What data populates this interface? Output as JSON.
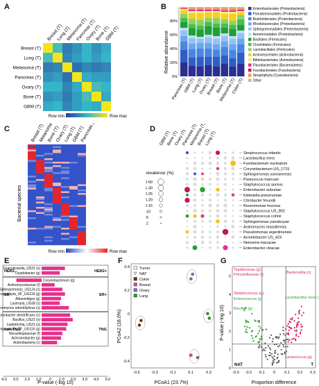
{
  "panel_labels": [
    "A",
    "B",
    "C",
    "D",
    "E",
    "F",
    "G"
  ],
  "colors": {
    "heat_low": "#2a3f9e",
    "heat_mid": "#35b6c8",
    "heat_high": "#f3e41c",
    "red": "#e3262c",
    "blue": "#3553c9",
    "pink": "#e8318d",
    "green": "#2ca02c"
  },
  "panel_a": {
    "col_labels": [
      "Breast (T)",
      "Lung (T)",
      "Melanoma (T)",
      "Pancreas (T)",
      "Ovary (T)",
      "Bone (T)",
      "GBM (T)"
    ],
    "row_labels": [
      "Breast (T)",
      "Lung (T)",
      "Melanoma (T)",
      "Pancreas (T)",
      "Ovary (T)",
      "Bone (T)",
      "GBM (T)"
    ],
    "legend_min": "Row min",
    "legend_max": "Row max",
    "matrix": [
      [
        1.0,
        0.55,
        0.25,
        0.35,
        0.5,
        0.35,
        0.45
      ],
      [
        0.55,
        1.0,
        0.3,
        0.4,
        0.5,
        0.4,
        0.5
      ],
      [
        0.25,
        0.3,
        1.0,
        0.2,
        0.3,
        0.25,
        0.3
      ],
      [
        0.35,
        0.4,
        0.2,
        1.0,
        0.45,
        0.4,
        0.4
      ],
      [
        0.5,
        0.5,
        0.3,
        0.45,
        1.0,
        0.55,
        0.5
      ],
      [
        0.35,
        0.4,
        0.25,
        0.4,
        0.55,
        1.0,
        0.45
      ],
      [
        0.45,
        0.5,
        0.3,
        0.4,
        0.5,
        0.45,
        1.0
      ]
    ]
  },
  "panel_b": {
    "ylabel": "Relative abundance",
    "ticks": [
      "0%",
      "20%",
      "40%",
      "60%",
      "80%"
    ],
    "categories": [
      "Pancreas (T)",
      "GBM (T)",
      "Lung (T)",
      "Ovary (T)",
      "Breast (T)",
      "Bone (T)",
      "Melanoma (T)",
      "Colon (T)"
    ],
    "legend": [
      {
        "name": "Enterobacterales (Proteobacteria)",
        "color": "#2b2f8f"
      },
      {
        "name": "Pseudomonadales (Proteobacteria)",
        "color": "#2f5fc4"
      },
      {
        "name": "Burkholderiales (Proteobacteria)",
        "color": "#4a86e0"
      },
      {
        "name": "Rhodobacterales (Proteobacteria)",
        "color": "#6ba6ee"
      },
      {
        "name": "Sphingomonadales (Proteobacteria)",
        "color": "#93c3f4"
      },
      {
        "name": "Aeromonadales (Proteobacteria)",
        "color": "#bcdcf7"
      },
      {
        "name": "Bacillales (Firmicutes)",
        "color": "#1f9e3a"
      },
      {
        "name": "Clostridiales (Firmicutes)",
        "color": "#46c04a"
      },
      {
        "name": "Lactobacillales (Firmicutes)",
        "color": "#8fd16a"
      },
      {
        "name": "Actinomycetales (Actinobacteria)",
        "color": "#f2d21b"
      },
      {
        "name": "Bifidobacteriales (Actinobacteria)",
        "color": "#f7ea7a"
      },
      {
        "name": "Flavobacteriales (Bacteroidetes)",
        "color": "#e8318d"
      },
      {
        "name": "Fusobacteriales (Fusobacteria)",
        "color": "#c2185b"
      },
      {
        "name": "Streptophyta (Cyanobacteria)",
        "color": "#f39a3c"
      },
      {
        "name": "Other",
        "color": "#b8b8b8"
      }
    ],
    "stacks": [
      [
        20,
        18,
        12,
        8,
        8,
        4,
        8,
        6,
        6,
        5,
        2,
        1,
        0,
        1,
        1
      ],
      [
        15,
        12,
        12,
        8,
        8,
        4,
        10,
        6,
        8,
        8,
        3,
        2,
        0,
        2,
        2
      ],
      [
        14,
        14,
        12,
        8,
        6,
        3,
        10,
        6,
        8,
        10,
        3,
        2,
        0,
        2,
        2
      ],
      [
        16,
        12,
        12,
        8,
        8,
        4,
        12,
        6,
        6,
        8,
        2,
        2,
        0,
        2,
        2
      ],
      [
        14,
        14,
        10,
        8,
        8,
        4,
        12,
        6,
        8,
        8,
        2,
        2,
        0,
        2,
        2
      ],
      [
        18,
        12,
        12,
        8,
        8,
        4,
        8,
        6,
        6,
        8,
        3,
        2,
        0,
        3,
        2
      ],
      [
        14,
        12,
        12,
        8,
        8,
        4,
        10,
        6,
        6,
        10,
        3,
        2,
        0,
        3,
        2
      ],
      [
        18,
        16,
        12,
        8,
        8,
        4,
        8,
        8,
        6,
        4,
        2,
        2,
        0,
        2,
        2
      ]
    ]
  },
  "panel_c": {
    "col_labels": [
      "Breast (T)",
      "Melanoma (T)",
      "Bone (T)",
      "Ovary (T)",
      "Lung (T)",
      "GBM (T)",
      "Pancreas (T)"
    ],
    "ylabel": "Bacterial species",
    "legend_min": "Row min",
    "legend_max": "Row max"
  },
  "panel_d": {
    "col_labels": [
      "GBM (T)",
      "Bone (T)",
      "Ovary (T)",
      "Pancreas (T)",
      "Melanoma (T)",
      "Breast (T)",
      "Lung (T)"
    ],
    "species": [
      "Streptococcus infantis",
      "Lactobacillus iners",
      "Fusobacterium nucleatum",
      "Corynebacterium US_1715",
      "Sphingomonas yunnanensis",
      "Paracoccus marcusii",
      "Staphylococcus aureus",
      "Enterobacter asburiae",
      "Klebsiella pneumoniae",
      "Citrobacter freundii",
      "Roseomonas mucosa",
      "Staphylococcus US_802",
      "Staphylococcus cohnii",
      "Sphingomonas yanoikuyae",
      "Actinomyces massiliensis",
      "Pseudomonas argentinensis",
      "Acinetobacter US_424",
      "Neisseria macacae",
      "Enterobacter cloacae"
    ],
    "prevalence_title": "Prevalence (%)",
    "prevalence_levels": [
      "30-50",
      "25-30",
      "20-25",
      "15-20",
      "10-15",
      "5-10",
      "2-5",
      "0-2"
    ]
  },
  "panel_e": {
    "xlabel": "P-value (-log 10)",
    "ticks": [
      "4.0",
      "3.0",
      "2.0",
      "1.0",
      "0",
      "1.0",
      "2.0",
      "3.0",
      "4.0",
      "5.0"
    ],
    "groups": [
      {
        "left": "HER2-",
        "right": "HER2+"
      },
      {
        "left": "ER-",
        "right": "ER+"
      },
      {
        "left": "non-TNG",
        "right": "TNG"
      }
    ],
    "bars": [
      {
        "label": "Granulicatella_US31 (s)",
        "side": "right",
        "value": 3.6
      },
      {
        "label": "Dyadobacter (g)",
        "side": "right",
        "value": 2.8
      },
      {
        "label": "Corynebacterium (g)",
        "side": "left",
        "value": 3.9
      },
      {
        "label": "Actinomycetaceae (f)",
        "side": "right",
        "value": 2.0
      },
      {
        "label": "Sphingomonas_US124 (s)",
        "side": "right",
        "value": 3.2
      },
      {
        "label": "Streptophyta_UF_UG116 (g)",
        "side": "right",
        "value": 3.6
      },
      {
        "label": "Alkanindiges (g)",
        "side": "right",
        "value": 3.0
      },
      {
        "label": "Lautropia_US38 (s)",
        "side": "right",
        "value": 2.8
      },
      {
        "label": "Actinomyces odontolyticus (s)",
        "side": "right",
        "value": 4.2
      },
      {
        "label": "Achromobacter denitrificans (s)",
        "side": "right",
        "value": 4.4
      },
      {
        "label": "Bacillus_US21 (s)",
        "side": "right",
        "value": 4.8
      },
      {
        "label": "Leptotrichia_US21 (s)",
        "side": "right",
        "value": 4.0
      },
      {
        "label": "Streptophyta_UF_UG116 (g)",
        "side": "right",
        "value": 3.8
      },
      {
        "label": "Nocardiopsaceae (f)",
        "side": "right",
        "value": 3.2
      },
      {
        "label": "Achromobacter (g)",
        "side": "right",
        "value": 3.0
      },
      {
        "label": "Actinobacteria (c)",
        "side": "right",
        "value": 2.4
      }
    ]
  },
  "panel_f": {
    "xlabel": "PCoA1 (23.7%)",
    "ylabel": "PCoA2 (18.0%)",
    "xticks": [
      "-0.5",
      "-0.3",
      "-0.1",
      "0.1",
      "0.3"
    ],
    "yticks": [
      "-0.4",
      "-0.2",
      "0",
      "0.2",
      "0.4"
    ],
    "legend": [
      {
        "name": "Tumor",
        "shape": "square",
        "color": "#ffffff"
      },
      {
        "name": "NAT",
        "shape": "triangle",
        "color": "#ffffff"
      },
      {
        "name": "Colon",
        "shape": "square",
        "color": "#6b2e12"
      },
      {
        "name": "Breast",
        "shape": "square",
        "color": "#d14bb0"
      },
      {
        "name": "Ovary",
        "shape": "square",
        "color": "#8c6bbf"
      },
      {
        "name": "Lung",
        "shape": "square",
        "color": "#2ca02c"
      }
    ],
    "points": [
      {
        "x": -0.5,
        "y": -0.08,
        "color": "#6b2e12",
        "group": "Colon"
      },
      {
        "x": -0.48,
        "y": -0.04,
        "color": "#6b2e12",
        "group": "Colon"
      },
      {
        "x": 0.12,
        "y": 0.32,
        "color": "#8c6bbf",
        "group": "Ovary"
      },
      {
        "x": 0.14,
        "y": 0.36,
        "color": "#8c6bbf",
        "group": "Ovary"
      },
      {
        "x": 0.32,
        "y": 0.02,
        "color": "#2ca02c",
        "group": "Lung"
      },
      {
        "x": 0.34,
        "y": -0.02,
        "color": "#2ca02c",
        "group": "Lung"
      },
      {
        "x": 0.12,
        "y": -0.34,
        "color": "#d14bb0",
        "group": "Breast"
      },
      {
        "x": 0.2,
        "y": -0.36,
        "color": "#d14bb0",
        "group": "Breast"
      }
    ]
  },
  "panel_g": {
    "xlabel": "Proportion difference",
    "ylabel": "P-value (-log 10)",
    "xticks": [
      "-0.3",
      "-0.2",
      "-0.1",
      "0",
      "0.1",
      "0.2",
      "0.3"
    ],
    "yticks": [
      "0",
      "1",
      "2",
      "3",
      "4",
      "5"
    ],
    "corner_left": "NAT",
    "corner_right": "T",
    "annotations": [
      {
        "text": "Tepidimonas (g)",
        "color": "#d81b60"
      },
      {
        "text": "Prevotellaceae (f)",
        "color": "#d81b60"
      },
      {
        "text": "Bacteroidia (c)",
        "color": "#d81b60"
      },
      {
        "text": "Streptococcus (g)",
        "color": "#d81b60"
      },
      {
        "text": "Enterococcus (g)",
        "color": "#2ca02c"
      },
      {
        "text": "Bacillus (g)",
        "color": "#2ca02c"
      },
      {
        "text": "Lactobacillus iners (s)",
        "color": "#2ca02c"
      },
      {
        "text": "Lactococcus (g)",
        "color": "#d81b60"
      }
    ]
  }
}
